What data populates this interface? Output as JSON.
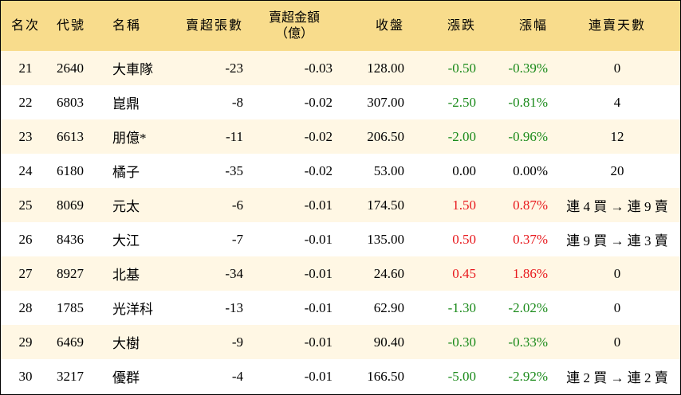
{
  "headers": {
    "rank": "名次",
    "code": "代號",
    "name": "名稱",
    "net_sell_lots": "賣超張數",
    "net_sell_amount_line1": "賣超金額",
    "net_sell_amount_line2": "（億）",
    "close": "收盤",
    "change": "漲跌",
    "pct": "漲幅",
    "streak": "連賣天數"
  },
  "rows": [
    {
      "rank": "21",
      "code": "2640",
      "name": "大車隊",
      "lots": "-23",
      "amount": "-0.03",
      "close": "128.00",
      "change": "-0.50",
      "pct": "-0.39%",
      "streak": "0",
      "trend": "neg"
    },
    {
      "rank": "22",
      "code": "6803",
      "name": "崑鼎",
      "lots": "-8",
      "amount": "-0.02",
      "close": "307.00",
      "change": "-2.50",
      "pct": "-0.81%",
      "streak": "4",
      "trend": "neg"
    },
    {
      "rank": "23",
      "code": "6613",
      "name": "朋億*",
      "lots": "-11",
      "amount": "-0.02",
      "close": "206.50",
      "change": "-2.00",
      "pct": "-0.96%",
      "streak": "12",
      "trend": "neg"
    },
    {
      "rank": "24",
      "code": "6180",
      "name": "橘子",
      "lots": "-35",
      "amount": "-0.02",
      "close": "53.00",
      "change": "0.00",
      "pct": "0.00%",
      "streak": "20",
      "trend": "flat"
    },
    {
      "rank": "25",
      "code": "8069",
      "name": "元太",
      "lots": "-6",
      "amount": "-0.01",
      "close": "174.50",
      "change": "1.50",
      "pct": "0.87%",
      "streak": "連 4 買 → 連 9 賣",
      "trend": "pos"
    },
    {
      "rank": "26",
      "code": "8436",
      "name": "大江",
      "lots": "-7",
      "amount": "-0.01",
      "close": "135.00",
      "change": "0.50",
      "pct": "0.37%",
      "streak": "連 9 買 → 連 3 賣",
      "trend": "pos"
    },
    {
      "rank": "27",
      "code": "8927",
      "name": "北基",
      "lots": "-34",
      "amount": "-0.01",
      "close": "24.60",
      "change": "0.45",
      "pct": "1.86%",
      "streak": "0",
      "trend": "pos"
    },
    {
      "rank": "28",
      "code": "1785",
      "name": "光洋科",
      "lots": "-13",
      "amount": "-0.01",
      "close": "62.90",
      "change": "-1.30",
      "pct": "-2.02%",
      "streak": "0",
      "trend": "neg"
    },
    {
      "rank": "29",
      "code": "6469",
      "name": "大樹",
      "lots": "-9",
      "amount": "-0.01",
      "close": "90.40",
      "change": "-0.30",
      "pct": "-0.33%",
      "streak": "0",
      "trend": "neg"
    },
    {
      "rank": "30",
      "code": "3217",
      "name": "優群",
      "lots": "-4",
      "amount": "-0.01",
      "close": "166.50",
      "change": "-5.00",
      "pct": "-2.92%",
      "streak": "連 2 買 → 連 2 賣",
      "trend": "neg"
    }
  ],
  "colors": {
    "header_bg": "#f8dc8c",
    "odd_row_bg": "#fff7e4",
    "up": "#e8191d",
    "down": "#1a8a1a"
  }
}
